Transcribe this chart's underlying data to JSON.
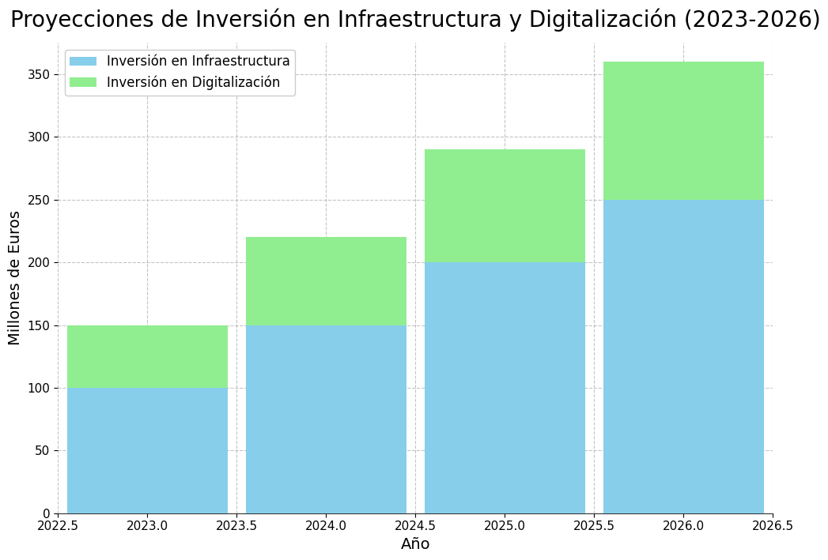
{
  "title": "Proyecciones de Inversión en Infraestructura y Digitalización (2023-2026)",
  "xlabel": "Año",
  "ylabel": "Millones de Euros",
  "years": [
    2023,
    2024,
    2025,
    2026
  ],
  "infraestructura": [
    100,
    150,
    200,
    250
  ],
  "digitalizacion": [
    50,
    70,
    90,
    110
  ],
  "color_infra": "#87CEEB",
  "color_digital": "#90EE90",
  "legend_infra": "Inversión en Infraestructura",
  "legend_digital": "Inversión en Digitalización",
  "ylim": [
    0,
    375
  ],
  "bar_width": 0.9,
  "title_fontsize": 20,
  "axis_fontsize": 14,
  "tick_fontsize": 11,
  "legend_fontsize": 12,
  "background_color": "#ffffff",
  "grid_color": "#aaaaaa",
  "grid_linestyle": "--",
  "xticks": [
    2022.5,
    2023.0,
    2023.5,
    2024.0,
    2024.5,
    2025.0,
    2025.5,
    2026.0,
    2026.5
  ],
  "xticklabels": [
    "2022.5",
    "2023.0",
    "2023.5",
    "2024.0",
    "2024.5",
    "2025.0",
    "2025.5",
    "2026.0",
    "2026.5"
  ],
  "yticks": [
    0,
    50,
    100,
    150,
    200,
    250,
    300,
    350
  ],
  "xlim": [
    2022.5,
    2026.5
  ]
}
